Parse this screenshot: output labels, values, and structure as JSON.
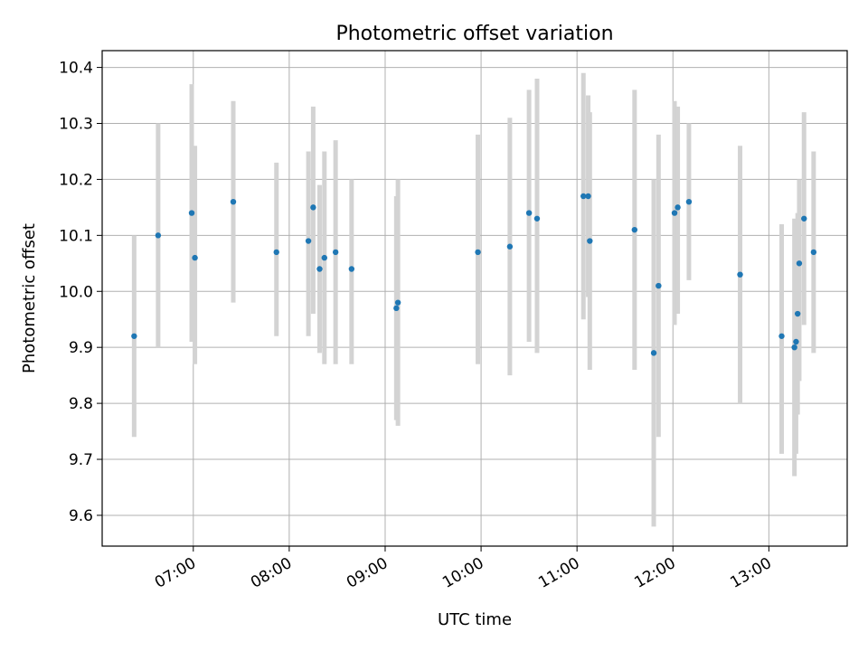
{
  "chart_data": {
    "type": "scatter",
    "title": "Photometric offset variation",
    "xlabel": "UTC time",
    "ylabel": "Photometric offset",
    "x_axis": "time",
    "xlim": [
      "06:03",
      "13:49"
    ],
    "ylim": [
      9.545,
      10.43
    ],
    "grid": true,
    "marker_color": "#1f77b4",
    "errorbar_color": "#d3d3d3",
    "xticks": [
      "07:00",
      "08:00",
      "09:00",
      "10:00",
      "11:00",
      "12:00",
      "13:00"
    ],
    "yticks": [
      9.6,
      9.7,
      9.8,
      9.9,
      10.0,
      10.1,
      10.2,
      10.3,
      10.4
    ],
    "points": [
      {
        "t": "06:23",
        "y": 9.92,
        "lo": 9.74,
        "hi": 10.1
      },
      {
        "t": "06:38",
        "y": 10.1,
        "lo": 9.9,
        "hi": 10.3
      },
      {
        "t": "06:59",
        "y": 10.14,
        "lo": 9.91,
        "hi": 10.37
      },
      {
        "t": "07:01",
        "y": 10.06,
        "lo": 9.87,
        "hi": 10.26
      },
      {
        "t": "07:25",
        "y": 10.16,
        "lo": 9.98,
        "hi": 10.34
      },
      {
        "t": "07:52",
        "y": 10.07,
        "lo": 9.92,
        "hi": 10.23
      },
      {
        "t": "08:12",
        "y": 10.09,
        "lo": 9.92,
        "hi": 10.25
      },
      {
        "t": "08:15",
        "y": 10.15,
        "lo": 9.96,
        "hi": 10.33
      },
      {
        "t": "08:19",
        "y": 10.04,
        "lo": 9.89,
        "hi": 10.19
      },
      {
        "t": "08:22",
        "y": 10.06,
        "lo": 9.87,
        "hi": 10.25
      },
      {
        "t": "08:29",
        "y": 10.07,
        "lo": 9.87,
        "hi": 10.27
      },
      {
        "t": "08:39",
        "y": 10.04,
        "lo": 9.87,
        "hi": 10.2
      },
      {
        "t": "09:07",
        "y": 9.97,
        "lo": 9.77,
        "hi": 10.17
      },
      {
        "t": "09:08",
        "y": 9.98,
        "lo": 9.76,
        "hi": 10.2
      },
      {
        "t": "09:58",
        "y": 10.07,
        "lo": 9.87,
        "hi": 10.28
      },
      {
        "t": "10:18",
        "y": 10.08,
        "lo": 9.85,
        "hi": 10.31
      },
      {
        "t": "10:30",
        "y": 10.14,
        "lo": 9.91,
        "hi": 10.36
      },
      {
        "t": "10:35",
        "y": 10.13,
        "lo": 9.89,
        "hi": 10.38
      },
      {
        "t": "11:04",
        "y": 10.17,
        "lo": 9.95,
        "hi": 10.39
      },
      {
        "t": "11:07",
        "y": 10.17,
        "lo": 9.99,
        "hi": 10.35
      },
      {
        "t": "11:08",
        "y": 10.09,
        "lo": 9.86,
        "hi": 10.32
      },
      {
        "t": "11:36",
        "y": 10.11,
        "lo": 9.86,
        "hi": 10.36
      },
      {
        "t": "11:48",
        "y": 9.89,
        "lo": 9.58,
        "hi": 10.2
      },
      {
        "t": "11:51",
        "y": 10.01,
        "lo": 9.74,
        "hi": 10.28
      },
      {
        "t": "12:01",
        "y": 10.14,
        "lo": 9.94,
        "hi": 10.34
      },
      {
        "t": "12:03",
        "y": 10.15,
        "lo": 9.96,
        "hi": 10.33
      },
      {
        "t": "12:10",
        "y": 10.16,
        "lo": 10.02,
        "hi": 10.3
      },
      {
        "t": "12:42",
        "y": 10.03,
        "lo": 9.8,
        "hi": 10.26
      },
      {
        "t": "13:08",
        "y": 9.92,
        "lo": 9.71,
        "hi": 10.12
      },
      {
        "t": "13:16",
        "y": 9.9,
        "lo": 9.67,
        "hi": 10.13
      },
      {
        "t": "13:17",
        "y": 9.91,
        "lo": 9.71,
        "hi": 10.11
      },
      {
        "t": "13:18",
        "y": 9.96,
        "lo": 9.78,
        "hi": 10.14
      },
      {
        "t": "13:19",
        "y": 10.05,
        "lo": 9.84,
        "hi": 10.2
      },
      {
        "t": "13:22",
        "y": 10.13,
        "lo": 9.94,
        "hi": 10.32
      },
      {
        "t": "13:28",
        "y": 10.07,
        "lo": 9.89,
        "hi": 10.25
      }
    ]
  }
}
